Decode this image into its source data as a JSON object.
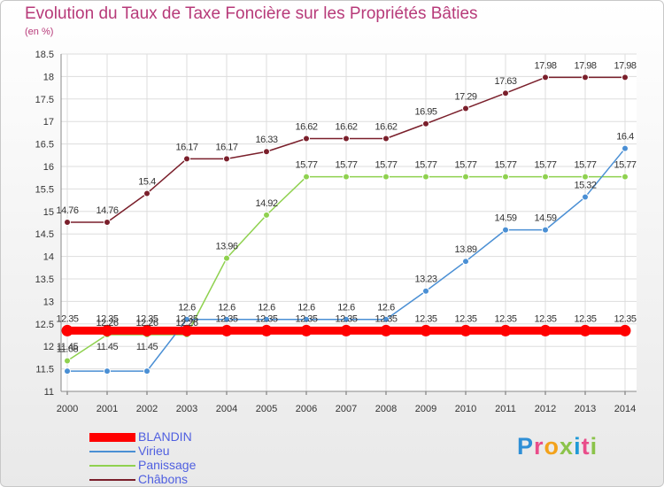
{
  "title": "Evolution du Taux de Taxe Foncière sur les Propriétés Bâties",
  "unit": "(en %)",
  "logo": [
    "P",
    "r",
    "o",
    "x",
    "i",
    "t",
    "i"
  ],
  "chart_data": {
    "type": "line",
    "x": [
      "2000",
      "2001",
      "2002",
      "2003",
      "2004",
      "2005",
      "2006",
      "2007",
      "2008",
      "2009",
      "2010",
      "2011",
      "2012",
      "2013",
      "2014"
    ],
    "ylim": [
      11,
      18.5
    ],
    "yticks": [
      "11",
      "11.5",
      "12",
      "12.5",
      "13",
      "13.5",
      "14",
      "14.5",
      "15",
      "15.5",
      "16",
      "16.5",
      "17",
      "17.5",
      "18",
      "18.5"
    ],
    "grid": true,
    "legend_position": "bottom-left",
    "series": [
      {
        "name": "BLANDIN",
        "color": "#ff0000",
        "values": [
          12.35,
          12.35,
          12.35,
          12.35,
          12.35,
          12.35,
          12.35,
          12.35,
          12.35,
          12.35,
          12.35,
          12.35,
          12.35,
          12.35,
          12.35
        ],
        "labels": [
          "12.35",
          "12.35",
          "12.35",
          "12.35",
          "12.35",
          "12.35",
          "12.35",
          "12.35",
          "12.35",
          "12.35",
          "12.35",
          "12.35",
          "12.35",
          "12.35",
          "12.35"
        ]
      },
      {
        "name": "Virieu",
        "color": "#4a8fd4",
        "values": [
          11.45,
          11.45,
          11.45,
          12.6,
          12.6,
          12.6,
          12.6,
          12.6,
          12.6,
          13.23,
          13.89,
          14.59,
          14.59,
          15.32,
          16.4
        ],
        "labels": [
          "11.45",
          "11.45",
          "11.45",
          "12.6",
          "12.6",
          "12.6",
          "12.6",
          "12.6",
          "12.6",
          "13.23",
          "13.89",
          "14.59",
          "14.59",
          "15.32",
          "16.4"
        ]
      },
      {
        "name": "Panissage",
        "color": "#8fd14f",
        "values": [
          11.68,
          12.26,
          12.26,
          12.26,
          13.96,
          14.92,
          15.77,
          15.77,
          15.77,
          15.77,
          15.77,
          15.77,
          15.77,
          15.77,
          15.77
        ],
        "labels": [
          "11.68",
          "12.26",
          "12.26",
          "12.26",
          "13.96",
          "14.92",
          "15.77",
          "15.77",
          "15.77",
          "15.77",
          "15.77",
          "15.77",
          "15.77",
          "15.77",
          "15.77"
        ]
      },
      {
        "name": "Châbons",
        "color": "#7a1f2b",
        "values": [
          14.76,
          14.76,
          15.4,
          16.17,
          16.17,
          16.33,
          16.62,
          16.62,
          16.62,
          16.95,
          17.29,
          17.63,
          17.98,
          17.98,
          17.98
        ],
        "labels": [
          "14.76",
          "14.76",
          "15.4",
          "16.17",
          "16.17",
          "16.33",
          "16.62",
          "16.62",
          "16.62",
          "16.95",
          "17.29",
          "17.63",
          "17.98",
          "17.98",
          "17.98"
        ]
      }
    ]
  }
}
